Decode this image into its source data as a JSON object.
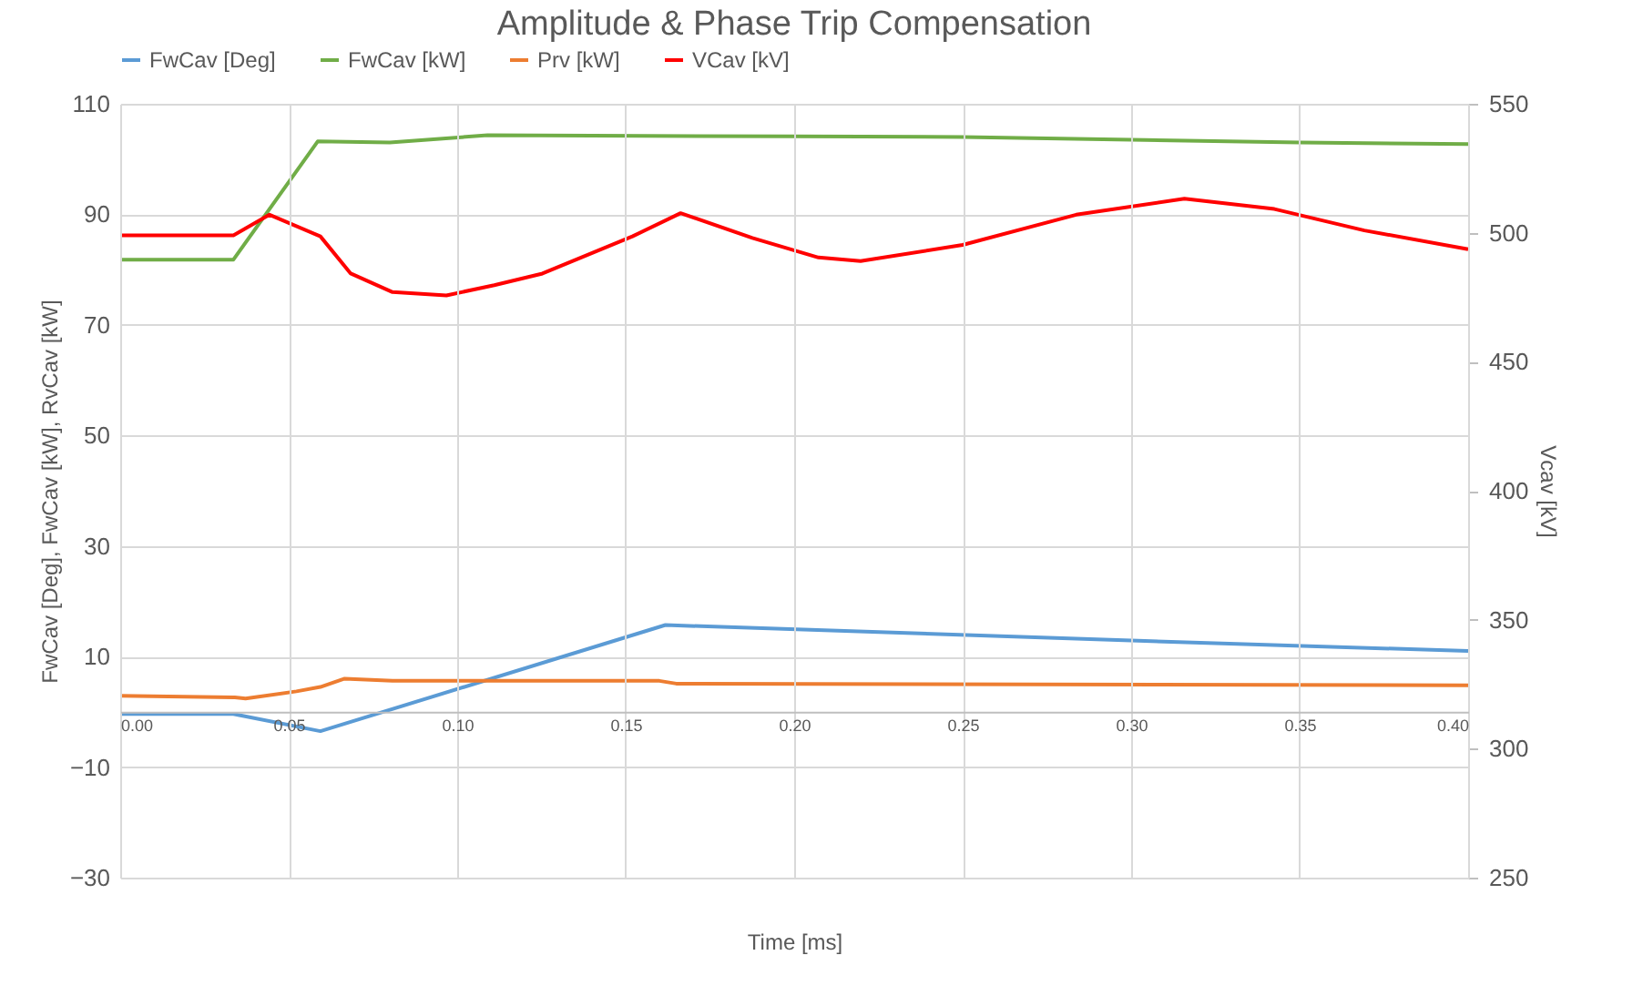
{
  "chart_data": {
    "type": "line",
    "title": "Amplitude & Phase Trip Compensation",
    "xlabel": "Time [ms]",
    "ylabel": "FwCav [Deg], FwCav [kW], RvCav [kW]",
    "y2label": "Vcav [kV]",
    "xlim": [
      0,
      0.4
    ],
    "xticks": [
      {
        "value": 0,
        "label": "0.00"
      },
      {
        "value": 0.05,
        "label": "0.05"
      },
      {
        "value": 0.1,
        "label": "0.10"
      },
      {
        "value": 0.15,
        "label": "0.15"
      },
      {
        "value": 0.2,
        "label": "0.20"
      },
      {
        "value": 0.25,
        "label": "0.25"
      },
      {
        "value": 0.3,
        "label": "0.30"
      },
      {
        "value": 0.35,
        "label": "0.35"
      },
      {
        "value": 0.4,
        "label": "0.40"
      }
    ],
    "ylim": [
      -30,
      110
    ],
    "yticks": [
      -30,
      -10,
      10,
      30,
      50,
      70,
      90,
      110
    ],
    "y2lim": [
      250,
      550
    ],
    "y2ticks": [
      250,
      300,
      350,
      400,
      450,
      500,
      550
    ],
    "grid": true,
    "legend": "top",
    "marker": "none",
    "line_style": "solid",
    "series": [
      {
        "name": "FwCav [Deg]",
        "color": "#5b9bd5",
        "x": [
          0,
          0.0336,
          0.0594,
          0.1618,
          0.3,
          0.4
        ],
        "values": [
          -0.4,
          -0.4,
          -3.5,
          15.7,
          12.9,
          11.0
        ]
      },
      {
        "name": "FwCav [kW]",
        "color": "#70ad47",
        "x": [
          0,
          0.0336,
          0.0586,
          0.08,
          0.109,
          0.2,
          0.25,
          0.3,
          0.35,
          0.4
        ],
        "values": [
          81.8,
          81.8,
          103.2,
          103.0,
          104.3,
          104.1,
          104.0,
          103.5,
          103.0,
          102.7
        ]
      },
      {
        "name": "Prv [kW]",
        "color": "#ed7d31",
        "x": [
          0,
          0.034,
          0.0372,
          0.0523,
          0.0594,
          0.0666,
          0.0808,
          0.16,
          0.165,
          0.4
        ],
        "values": [
          2.9,
          2.6,
          2.4,
          3.7,
          4.5,
          6.0,
          5.6,
          5.6,
          5.1,
          4.8
        ]
      },
      {
        "name": "VCav [kV]",
        "color": "#ff0000",
        "axis": "y2",
        "x": [
          0,
          0.0336,
          0.0443,
          0.0594,
          0.0684,
          0.0808,
          0.0968,
          0.111,
          0.1253,
          0.152,
          0.1663,
          0.1876,
          0.2072,
          0.2197,
          0.25,
          0.2837,
          0.3158,
          0.3425,
          0.3692,
          0.4
        ],
        "values": [
          499,
          499,
          507,
          498.6,
          484.2,
          477,
          475.7,
          479.7,
          484.2,
          498.6,
          507.6,
          498,
          490.4,
          489,
          495.3,
          507,
          513.2,
          509.2,
          500.9,
          493.6
        ]
      }
    ]
  }
}
